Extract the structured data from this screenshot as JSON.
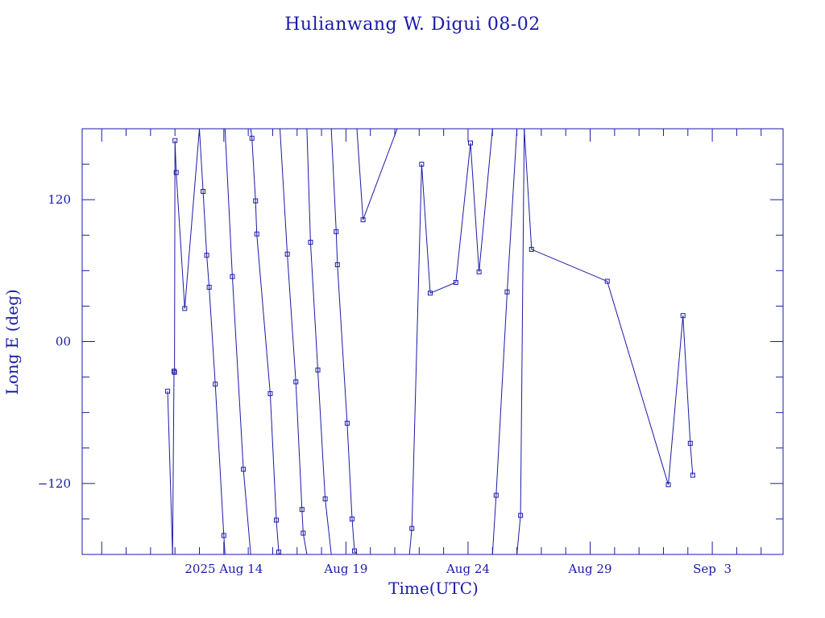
{
  "chart_data": {
    "type": "line",
    "title": "Hulianwang W. Digui 08-02",
    "xlabel": "Time(UTC)",
    "ylabel": "Long E (deg)",
    "x_unit": "days (Aug 2025)",
    "xlim": [
      8.2,
      36.9
    ],
    "ylim": [
      -180,
      180
    ],
    "x_ticks": [
      {
        "x": 14,
        "label": "2025 Aug 14"
      },
      {
        "x": 19,
        "label": "Aug 19"
      },
      {
        "x": 24,
        "label": "Aug 24"
      },
      {
        "x": 29,
        "label": "Aug 29"
      },
      {
        "x": 34,
        "label": "Sep  3"
      }
    ],
    "y_ticks": [
      {
        "y": 120,
        "label": "120"
      },
      {
        "y": 0,
        "label": "00"
      },
      {
        "y": -120,
        "label": "−120"
      }
    ],
    "grid": false,
    "marker": "square",
    "color": "#1a1aa8",
    "segments": [
      [
        [
          11.7,
          -42
        ],
        [
          11.9,
          -180
        ]
      ],
      [
        [
          11.9,
          -180
        ],
        [
          11.96,
          -25
        ],
        [
          11.98,
          -26
        ],
        [
          12.0,
          170
        ],
        [
          12.05,
          143
        ],
        [
          12.4,
          28
        ],
        [
          13.0,
          180
        ]
      ],
      [
        [
          13.0,
          180
        ],
        [
          13.15,
          127
        ],
        [
          13.3,
          73
        ],
        [
          13.4,
          46
        ],
        [
          13.65,
          -36
        ],
        [
          14.0,
          -164
        ],
        [
          14.05,
          -180
        ]
      ],
      [
        [
          14.05,
          180
        ],
        [
          14.35,
          55
        ],
        [
          14.8,
          -108
        ],
        [
          15.1,
          -180
        ]
      ],
      [
        [
          15.1,
          180
        ],
        [
          15.15,
          172
        ],
        [
          15.3,
          119
        ],
        [
          15.35,
          91
        ],
        [
          15.9,
          -44
        ],
        [
          16.15,
          -151
        ],
        [
          16.25,
          -178
        ],
        [
          16.3,
          -180
        ]
      ],
      [
        [
          16.3,
          180
        ],
        [
          16.6,
          74
        ],
        [
          16.95,
          -34
        ],
        [
          17.2,
          -142
        ],
        [
          17.25,
          -162
        ],
        [
          17.4,
          -180
        ]
      ],
      [
        [
          17.4,
          180
        ],
        [
          17.55,
          84
        ],
        [
          17.85,
          -24
        ],
        [
          18.15,
          -133
        ],
        [
          18.4,
          -180
        ]
      ],
      [
        [
          18.4,
          180
        ],
        [
          18.6,
          93
        ],
        [
          18.65,
          65
        ],
        [
          19.05,
          -69
        ],
        [
          19.25,
          -150
        ],
        [
          19.35,
          -177
        ],
        [
          19.45,
          -180
        ]
      ],
      [
        [
          19.45,
          180
        ],
        [
          19.7,
          103
        ],
        [
          21.1,
          180
        ]
      ],
      [
        [
          21.6,
          -180
        ],
        [
          21.7,
          -158
        ],
        [
          22.1,
          150
        ],
        [
          22.45,
          41
        ],
        [
          23.5,
          50
        ],
        [
          24.1,
          168
        ],
        [
          24.45,
          59
        ],
        [
          25.0,
          180
        ]
      ],
      [
        [
          25.0,
          -180
        ],
        [
          25.15,
          -130
        ],
        [
          25.6,
          42
        ],
        [
          26.0,
          180
        ]
      ],
      [
        [
          26.0,
          -180
        ],
        [
          26.15,
          -147
        ],
        [
          26.3,
          180
        ]
      ],
      [
        [
          26.3,
          180
        ],
        [
          26.6,
          78
        ],
        [
          29.7,
          51
        ],
        [
          32.2,
          -121
        ],
        [
          32.8,
          22
        ],
        [
          33.1,
          -86
        ],
        [
          33.2,
          -113
        ]
      ]
    ]
  }
}
